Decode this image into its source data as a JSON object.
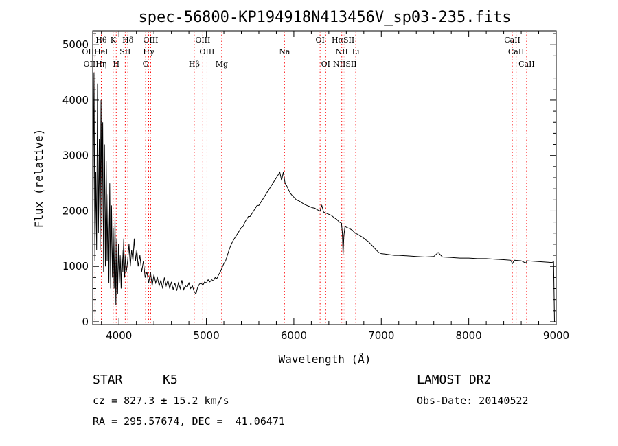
{
  "chart_data": {
    "type": "line",
    "title": "spec-56800-KP194918N413456V_sp03-235.fits",
    "xlabel": "Wavelength (Å)",
    "ylabel": "Flux (relative)",
    "xlim": [
      3700,
      9000
    ],
    "ylim": [
      -50,
      5250
    ],
    "xticks": [
      4000,
      5000,
      6000,
      7000,
      8000,
      9000
    ],
    "yticks": [
      0,
      1000,
      2000,
      3000,
      4000,
      5000
    ],
    "grid": false,
    "series": [
      {
        "values": [
          [
            3700,
            1200
          ],
          [
            3715,
            4500
          ],
          [
            3725,
            1100
          ],
          [
            3735,
            2700
          ],
          [
            3745,
            1300
          ],
          [
            3755,
            4300
          ],
          [
            3765,
            1600
          ],
          [
            3775,
            3300
          ],
          [
            3785,
            1300
          ],
          [
            3795,
            4000
          ],
          [
            3805,
            1500
          ],
          [
            3815,
            3600
          ],
          [
            3825,
            900
          ],
          [
            3835,
            3200
          ],
          [
            3845,
            1000
          ],
          [
            3855,
            2900
          ],
          [
            3865,
            1100
          ],
          [
            3875,
            2300
          ],
          [
            3885,
            700
          ],
          [
            3895,
            2500
          ],
          [
            3905,
            600
          ],
          [
            3915,
            2100
          ],
          [
            3925,
            800
          ],
          [
            3935,
            1700
          ],
          [
            3945,
            600
          ],
          [
            3955,
            1900
          ],
          [
            3965,
            300
          ],
          [
            3975,
            1500
          ],
          [
            3985,
            500
          ],
          [
            3995,
            1400
          ],
          [
            4005,
            700
          ],
          [
            4015,
            1200
          ],
          [
            4025,
            600
          ],
          [
            4035,
            1300
          ],
          [
            4045,
            900
          ],
          [
            4055,
            1500
          ],
          [
            4065,
            800
          ],
          [
            4075,
            1200
          ],
          [
            4085,
            900
          ],
          [
            4100,
            1100
          ],
          [
            4115,
            1400
          ],
          [
            4130,
            1000
          ],
          [
            4145,
            1300
          ],
          [
            4160,
            1100
          ],
          [
            4175,
            1500
          ],
          [
            4190,
            1100
          ],
          [
            4205,
            1300
          ],
          [
            4220,
            1000
          ],
          [
            4240,
            1200
          ],
          [
            4260,
            900
          ],
          [
            4280,
            1100
          ],
          [
            4300,
            800
          ],
          [
            4320,
            900
          ],
          [
            4340,
            700
          ],
          [
            4360,
            900
          ],
          [
            4380,
            650
          ],
          [
            4400,
            850
          ],
          [
            4420,
            700
          ],
          [
            4440,
            800
          ],
          [
            4460,
            650
          ],
          [
            4480,
            750
          ],
          [
            4500,
            600
          ],
          [
            4520,
            800
          ],
          [
            4540,
            650
          ],
          [
            4560,
            750
          ],
          [
            4580,
            600
          ],
          [
            4600,
            720
          ],
          [
            4620,
            580
          ],
          [
            4640,
            700
          ],
          [
            4660,
            560
          ],
          [
            4680,
            700
          ],
          [
            4700,
            600
          ],
          [
            4720,
            750
          ],
          [
            4740,
            580
          ],
          [
            4760,
            650
          ],
          [
            4780,
            620
          ],
          [
            4800,
            700
          ],
          [
            4820,
            600
          ],
          [
            4840,
            650
          ],
          [
            4860,
            550
          ],
          [
            4880,
            500
          ],
          [
            4900,
            620
          ],
          [
            4920,
            680
          ],
          [
            4940,
            700
          ],
          [
            4960,
            660
          ],
          [
            4980,
            720
          ],
          [
            5000,
            700
          ],
          [
            5020,
            760
          ],
          [
            5040,
            720
          ],
          [
            5060,
            760
          ],
          [
            5080,
            740
          ],
          [
            5100,
            800
          ],
          [
            5120,
            780
          ],
          [
            5140,
            850
          ],
          [
            5160,
            900
          ],
          [
            5180,
            980
          ],
          [
            5200,
            1050
          ],
          [
            5220,
            1100
          ],
          [
            5240,
            1200
          ],
          [
            5260,
            1300
          ],
          [
            5280,
            1380
          ],
          [
            5300,
            1450
          ],
          [
            5320,
            1500
          ],
          [
            5340,
            1550
          ],
          [
            5360,
            1600
          ],
          [
            5380,
            1650
          ],
          [
            5400,
            1700
          ],
          [
            5420,
            1720
          ],
          [
            5440,
            1800
          ],
          [
            5460,
            1850
          ],
          [
            5480,
            1900
          ],
          [
            5500,
            1900
          ],
          [
            5520,
            1950
          ],
          [
            5540,
            2000
          ],
          [
            5560,
            2050
          ],
          [
            5580,
            2100
          ],
          [
            5600,
            2100
          ],
          [
            5620,
            2150
          ],
          [
            5640,
            2200
          ],
          [
            5660,
            2250
          ],
          [
            5680,
            2300
          ],
          [
            5700,
            2350
          ],
          [
            5720,
            2400
          ],
          [
            5740,
            2450
          ],
          [
            5760,
            2500
          ],
          [
            5780,
            2550
          ],
          [
            5800,
            2600
          ],
          [
            5820,
            2650
          ],
          [
            5840,
            2700
          ],
          [
            5860,
            2550
          ],
          [
            5880,
            2700
          ],
          [
            5900,
            2500
          ],
          [
            5920,
            2450
          ],
          [
            5940,
            2380
          ],
          [
            5960,
            2320
          ],
          [
            5980,
            2280
          ],
          [
            6000,
            2250
          ],
          [
            6030,
            2200
          ],
          [
            6060,
            2180
          ],
          [
            6090,
            2150
          ],
          [
            6120,
            2120
          ],
          [
            6150,
            2100
          ],
          [
            6180,
            2080
          ],
          [
            6210,
            2060
          ],
          [
            6240,
            2050
          ],
          [
            6270,
            2020
          ],
          [
            6300,
            2000
          ],
          [
            6320,
            2100
          ],
          [
            6340,
            1980
          ],
          [
            6370,
            1960
          ],
          [
            6400,
            1940
          ],
          [
            6430,
            1920
          ],
          [
            6460,
            1880
          ],
          [
            6490,
            1850
          ],
          [
            6520,
            1800
          ],
          [
            6545,
            1780
          ],
          [
            6555,
            1600
          ],
          [
            6563,
            1200
          ],
          [
            6572,
            1550
          ],
          [
            6585,
            1720
          ],
          [
            6610,
            1700
          ],
          [
            6640,
            1680
          ],
          [
            6670,
            1650
          ],
          [
            6700,
            1600
          ],
          [
            6730,
            1580
          ],
          [
            6760,
            1550
          ],
          [
            6790,
            1520
          ],
          [
            6820,
            1480
          ],
          [
            6850,
            1450
          ],
          [
            6880,
            1400
          ],
          [
            6910,
            1350
          ],
          [
            6940,
            1300
          ],
          [
            6970,
            1250
          ],
          [
            7000,
            1230
          ],
          [
            7050,
            1220
          ],
          [
            7100,
            1210
          ],
          [
            7150,
            1200
          ],
          [
            7200,
            1200
          ],
          [
            7300,
            1190
          ],
          [
            7400,
            1180
          ],
          [
            7500,
            1170
          ],
          [
            7600,
            1180
          ],
          [
            7650,
            1250
          ],
          [
            7700,
            1170
          ],
          [
            7800,
            1160
          ],
          [
            7900,
            1150
          ],
          [
            8000,
            1150
          ],
          [
            8100,
            1140
          ],
          [
            8200,
            1140
          ],
          [
            8300,
            1130
          ],
          [
            8400,
            1120
          ],
          [
            8480,
            1110
          ],
          [
            8500,
            1050
          ],
          [
            8520,
            1110
          ],
          [
            8600,
            1100
          ],
          [
            8650,
            1060
          ],
          [
            8670,
            1100
          ],
          [
            8750,
            1090
          ],
          [
            8850,
            1080
          ],
          [
            8950,
            1070
          ],
          [
            8970,
            1080
          ],
          [
            8980,
            0
          ]
        ]
      }
    ],
    "line_markers": [
      {
        "label": "Hθ",
        "wave": 3798,
        "row": 0
      },
      {
        "label": "K",
        "wave": 3934,
        "row": 0
      },
      {
        "label": "Hδ",
        "wave": 4102,
        "row": 0
      },
      {
        "label": "OIII",
        "wave": 4363,
        "row": 0
      },
      {
        "label": "OIII",
        "wave": 4959,
        "row": 0
      },
      {
        "label": "OI",
        "wave": 6300,
        "row": 0
      },
      {
        "label": "HαSII",
        "wave": 6563,
        "row": 0
      },
      {
        "label": "CaII",
        "wave": 8498,
        "row": 0
      },
      {
        "label": "OIIHeI",
        "wave": 3727,
        "row": 1
      },
      {
        "label": "SII",
        "wave": 4072,
        "row": 1
      },
      {
        "label": "Hγ",
        "wave": 4340,
        "row": 1
      },
      {
        "label": "OIII",
        "wave": 5007,
        "row": 1
      },
      {
        "label": "Na",
        "wave": 5893,
        "row": 1
      },
      {
        "label": "NII",
        "wave": 6548,
        "row": 1
      },
      {
        "label": "Li",
        "wave": 6708,
        "row": 1
      },
      {
        "label": "CaII",
        "wave": 8542,
        "row": 1
      },
      {
        "label": "OIIHη",
        "wave": 3727,
        "row": 2
      },
      {
        "label": "H",
        "wave": 3969,
        "row": 2
      },
      {
        "label": "G",
        "wave": 4305,
        "row": 2
      },
      {
        "label": "Hβ",
        "wave": 4861,
        "row": 2
      },
      {
        "label": "Mg",
        "wave": 5175,
        "row": 2
      },
      {
        "label": "OI",
        "wave": 6364,
        "row": 2
      },
      {
        "label": "NIISII",
        "wave": 6584,
        "row": 2
      },
      {
        "label": "CaII",
        "wave": 8662,
        "row": 2
      }
    ],
    "marker_color": "#ff0000"
  },
  "info": {
    "object_class": "STAR",
    "subclass": "K5",
    "survey": "LAMOST DR2",
    "redshift": "cz = 827.3 ± 15.2 km/s",
    "obs_date": "Obs-Date: 20140522",
    "coords": "RA = 295.57674, DEC =  41.06471"
  }
}
